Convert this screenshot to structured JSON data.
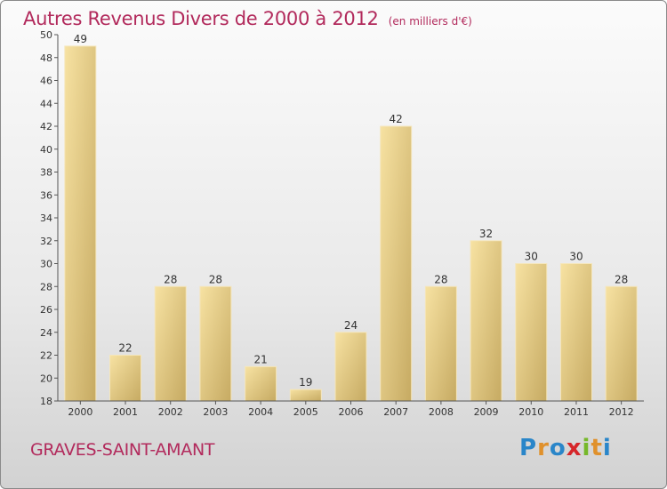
{
  "title": "Autres Revenus Divers de 2000 à 2012",
  "subtitle": "(en milliers d'€)",
  "place": "GRAVES-SAINT-AMANT",
  "logo": {
    "text": "Proxiti",
    "letters": [
      {
        "ch": "P",
        "color": "#2a86c9"
      },
      {
        "ch": "r",
        "color": "#e0912c"
      },
      {
        "ch": "o",
        "color": "#2a86c9"
      },
      {
        "ch": "x",
        "color": "#d6262a"
      },
      {
        "ch": "i",
        "color": "#76b82a"
      },
      {
        "ch": "t",
        "color": "#e0912c"
      },
      {
        "ch": "i",
        "color": "#2a86c9"
      }
    ]
  },
  "colors": {
    "title": "#b22a5c",
    "bar_light": "#f7e2a2",
    "bar_dark": "#c6aa62",
    "axis": "#555555"
  },
  "chart_data": {
    "type": "bar",
    "title": "Autres Revenus Divers de 2000 à 2012 (en milliers d'€)",
    "categories": [
      "2000",
      "2001",
      "2002",
      "2003",
      "2004",
      "2005",
      "2006",
      "2007",
      "2008",
      "2009",
      "2010",
      "2011",
      "2012"
    ],
    "values": [
      49,
      22,
      28,
      28,
      21,
      19,
      24,
      42,
      28,
      32,
      30,
      30,
      28
    ],
    "ylim": [
      18,
      50
    ],
    "yticks": [
      18,
      20,
      22,
      24,
      26,
      28,
      30,
      32,
      34,
      36,
      38,
      40,
      42,
      44,
      46,
      48,
      50
    ],
    "xlabel": "",
    "ylabel": "",
    "grid": false
  }
}
